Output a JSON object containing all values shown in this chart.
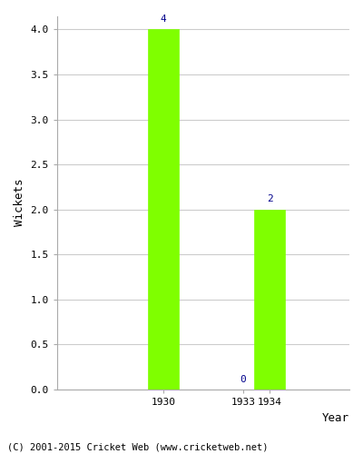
{
  "years": [
    "1930",
    "1933",
    "1934"
  ],
  "values": [
    4,
    0,
    2
  ],
  "bar_color": "#7FFF00",
  "bar_edge_color": "#7FFF00",
  "xlabel": "Year",
  "ylabel": "Wickets",
  "ylim": [
    0,
    4.15
  ],
  "yticks": [
    0.0,
    0.5,
    1.0,
    1.5,
    2.0,
    2.5,
    3.0,
    3.5,
    4.0
  ],
  "label_color": "#00008B",
  "label_fontsize": 8,
  "axis_label_fontsize": 9,
  "tick_fontsize": 8,
  "footer_text": "(C) 2001-2015 Cricket Web (www.cricketweb.net)",
  "footer_fontsize": 7.5,
  "background_color": "#ffffff",
  "grid_color": "#cccccc",
  "bar_width": 0.65
}
